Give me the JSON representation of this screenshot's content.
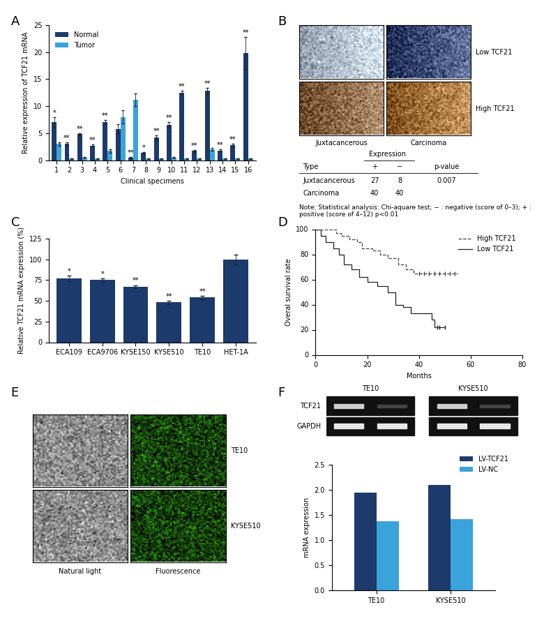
{
  "panel_labels": [
    "A",
    "B",
    "C",
    "D",
    "E",
    "F"
  ],
  "chart_data": [
    {
      "type": "bar",
      "panel": "A",
      "xlabel": "Clinical specimens",
      "ylabel": "Relative expression of TCF21 mRNA",
      "categories": [
        "1",
        "2",
        "3",
        "4",
        "5",
        "6",
        "7",
        "8",
        "9",
        "10",
        "11",
        "12",
        "13",
        "14",
        "15",
        "16"
      ],
      "series": [
        {
          "name": "Normal",
          "color": "#1c3a6b",
          "values": [
            7.0,
            3.0,
            4.8,
            2.7,
            7.0,
            5.8,
            0.5,
            1.3,
            4.2,
            6.5,
            12.5,
            1.7,
            12.8,
            1.8,
            2.8,
            19.8
          ],
          "errors": [
            0.9,
            0.3,
            0.2,
            0.2,
            0.4,
            0.8,
            0.1,
            0.2,
            0.4,
            0.5,
            0.3,
            0.2,
            0.6,
            0.2,
            0.2,
            3.0
          ]
        },
        {
          "name": "Tumor",
          "color": "#3aa3dc",
          "values": [
            3.0,
            0.3,
            0.5,
            0.3,
            1.7,
            8.0,
            11.2,
            0.3,
            0.3,
            0.5,
            0.3,
            0.3,
            2.0,
            0.3,
            0.3,
            0.3
          ],
          "errors": [
            0.3,
            0.05,
            0.1,
            0.05,
            0.3,
            1.2,
            1.2,
            0.05,
            0.05,
            0.1,
            0.05,
            0.05,
            0.2,
            0.05,
            0.05,
            0.05
          ]
        }
      ],
      "annotations": [
        "*",
        "**",
        "**",
        "**",
        "**",
        null,
        "**",
        "*",
        "**",
        "**",
        "**",
        "**",
        "**",
        "**",
        "**",
        "**"
      ],
      "ylim": [
        0,
        25
      ],
      "yticks": [
        0,
        5,
        10,
        15,
        20,
        25
      ],
      "legend": "upper left"
    },
    {
      "type": "bar",
      "panel": "C",
      "ylabel": "Relative TCF21 mRNA expression (%)",
      "categories": [
        "ECA109",
        "ECA9706",
        "KYSE150",
        "KYSE510",
        "TE10",
        "HET-1A"
      ],
      "values": [
        77,
        75,
        67,
        48,
        54,
        100
      ],
      "errors": [
        3,
        2,
        2,
        2,
        2,
        6
      ],
      "annotations": [
        "*",
        "*",
        "**",
        "**",
        "**",
        null
      ],
      "color": "#1c3a6b",
      "ylim": [
        0,
        125
      ],
      "yticks": [
        0,
        25,
        50,
        75,
        100,
        125
      ]
    },
    {
      "type": "line",
      "panel": "D",
      "xlabel": "Months",
      "ylabel": "Overal survival rate",
      "series": [
        {
          "name": "High TCF21",
          "color": "#444444",
          "line_style": "dashed",
          "marker": "|",
          "x": [
            0,
            5,
            8,
            10,
            13,
            16,
            18,
            22,
            25,
            28,
            32,
            35,
            38,
            55
          ],
          "values": [
            100,
            100,
            97,
            95,
            92,
            90,
            85,
            83,
            80,
            77,
            72,
            68,
            65,
            65
          ],
          "censored": [
            40,
            42,
            44,
            46,
            48,
            50,
            52,
            54
          ]
        },
        {
          "name": "Low TCF21",
          "color": "#222222",
          "line_style": "solid",
          "marker": "|",
          "x": [
            0,
            2,
            4,
            7,
            9,
            11,
            14,
            17,
            20,
            24,
            28,
            31,
            34,
            37,
            42,
            45,
            46,
            50
          ],
          "values": [
            100,
            95,
            90,
            85,
            80,
            72,
            68,
            62,
            58,
            55,
            50,
            40,
            38,
            33,
            33,
            28,
            22,
            22
          ],
          "censored": [
            47,
            48,
            50
          ]
        }
      ],
      "xlim": [
        0,
        80
      ],
      "xticks": [
        0,
        20,
        40,
        60,
        80
      ],
      "ylim": [
        0,
        100
      ],
      "yticks": [
        0,
        20,
        40,
        60,
        80,
        100
      ],
      "legend": "upper right"
    },
    {
      "type": "bar",
      "panel": "F",
      "ylabel": "mRNA expression",
      "categories": [
        "TE10",
        "KYSE510"
      ],
      "series": [
        {
          "name": "LV-TCF21",
          "color": "#1c3a6b",
          "values": [
            1.95,
            2.1
          ]
        },
        {
          "name": "LV-NC",
          "color": "#3aa3dc",
          "values": [
            1.38,
            1.42
          ]
        }
      ],
      "ylim": [
        0.0,
        2.5
      ],
      "yticks": [
        0.0,
        0.5,
        1.0,
        1.5,
        2.0,
        2.5
      ],
      "legend": "upper right"
    }
  ],
  "histology": {
    "row_labels": [
      "Low TCF21",
      "High TCF21"
    ],
    "column_labels": [
      "Juxtacancerous",
      "Carcinoma"
    ]
  },
  "table": {
    "group_header": "Expression",
    "columns": [
      "Type",
      "+",
      "−",
      "p-value"
    ],
    "rows": [
      [
        "Juxtacancerous",
        27,
        8,
        0.007
      ],
      [
        "Carcinoma",
        40,
        40,
        null
      ]
    ],
    "note": "Note: Statistical analysis: Chi-aquare test; − : negative (score of 0–3); + : positive (score of 4–12) p<0.01"
  },
  "fluorescence": {
    "row_labels": [
      "TE10",
      "KYSE510"
    ],
    "column_labels": [
      "Natural light",
      "Fluorescence"
    ]
  },
  "gel": {
    "bands": [
      "TCF21",
      "GAPDH"
    ],
    "groups": [
      "TE10",
      "KYSE510"
    ]
  }
}
